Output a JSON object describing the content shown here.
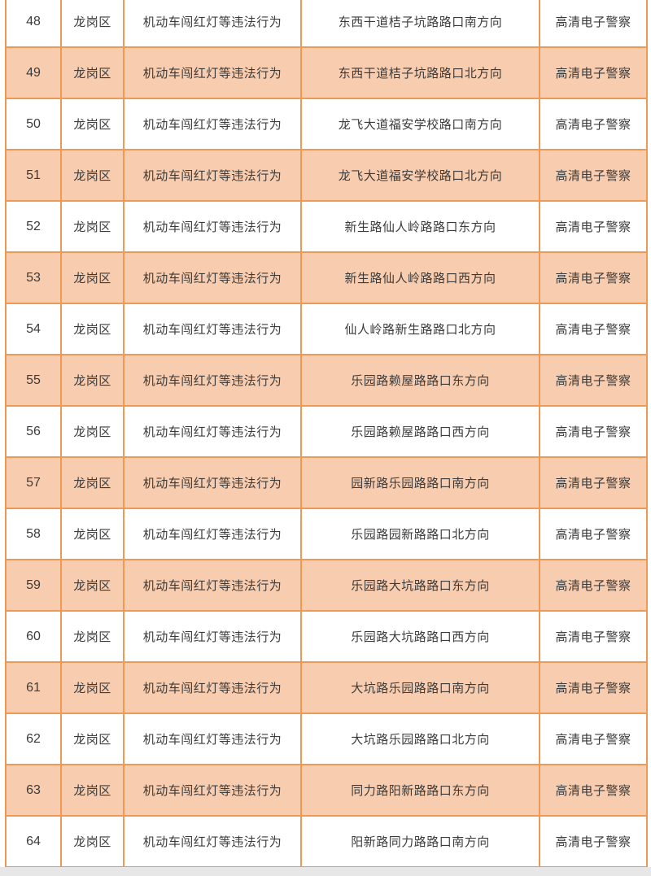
{
  "page": {
    "background": "#ffffff",
    "footer_strip_color": "#e7e7e7"
  },
  "table": {
    "border_color": "#ee9a55",
    "row_color": "#ffffff",
    "alt_row_color": "#f8cdaf",
    "text_color": "#3b3b3b",
    "rows": [
      {
        "no": "48",
        "district": "龙岗区",
        "violation": "机动车闯红灯等违法行为",
        "location": "东西干道桔子坑路路口南方向",
        "device": "高清电子警察"
      },
      {
        "no": "49",
        "district": "龙岗区",
        "violation": "机动车闯红灯等违法行为",
        "location": "东西干道桔子坑路路口北方向",
        "device": "高清电子警察"
      },
      {
        "no": "50",
        "district": "龙岗区",
        "violation": "机动车闯红灯等违法行为",
        "location": "龙飞大道福安学校路口南方向",
        "device": "高清电子警察"
      },
      {
        "no": "51",
        "district": "龙岗区",
        "violation": "机动车闯红灯等违法行为",
        "location": "龙飞大道福安学校路口北方向",
        "device": "高清电子警察"
      },
      {
        "no": "52",
        "district": "龙岗区",
        "violation": "机动车闯红灯等违法行为",
        "location": "新生路仙人岭路路口东方向",
        "device": "高清电子警察"
      },
      {
        "no": "53",
        "district": "龙岗区",
        "violation": "机动车闯红灯等违法行为",
        "location": "新生路仙人岭路路口西方向",
        "device": "高清电子警察"
      },
      {
        "no": "54",
        "district": "龙岗区",
        "violation": "机动车闯红灯等违法行为",
        "location": "仙人岭路新生路路口北方向",
        "device": "高清电子警察"
      },
      {
        "no": "55",
        "district": "龙岗区",
        "violation": "机动车闯红灯等违法行为",
        "location": "乐园路赖屋路路口东方向",
        "device": "高清电子警察"
      },
      {
        "no": "56",
        "district": "龙岗区",
        "violation": "机动车闯红灯等违法行为",
        "location": "乐园路赖屋路路口西方向",
        "device": "高清电子警察"
      },
      {
        "no": "57",
        "district": "龙岗区",
        "violation": "机动车闯红灯等违法行为",
        "location": "园新路乐园路路口南方向",
        "device": "高清电子警察"
      },
      {
        "no": "58",
        "district": "龙岗区",
        "violation": "机动车闯红灯等违法行为",
        "location": "乐园路园新路路口北方向",
        "device": "高清电子警察"
      },
      {
        "no": "59",
        "district": "龙岗区",
        "violation": "机动车闯红灯等违法行为",
        "location": "乐园路大坑路路口东方向",
        "device": "高清电子警察"
      },
      {
        "no": "60",
        "district": "龙岗区",
        "violation": "机动车闯红灯等违法行为",
        "location": "乐园路大坑路路口西方向",
        "device": "高清电子警察"
      },
      {
        "no": "61",
        "district": "龙岗区",
        "violation": "机动车闯红灯等违法行为",
        "location": "大坑路乐园路路口南方向",
        "device": "高清电子警察"
      },
      {
        "no": "62",
        "district": "龙岗区",
        "violation": "机动车闯红灯等违法行为",
        "location": "大坑路乐园路路口北方向",
        "device": "高清电子警察"
      },
      {
        "no": "63",
        "district": "龙岗区",
        "violation": "机动车闯红灯等违法行为",
        "location": "同力路阳新路路口东方向",
        "device": "高清电子警察"
      },
      {
        "no": "64",
        "district": "龙岗区",
        "violation": "机动车闯红灯等违法行为",
        "location": "阳新路同力路路口南方向",
        "device": "高清电子警察"
      }
    ]
  }
}
